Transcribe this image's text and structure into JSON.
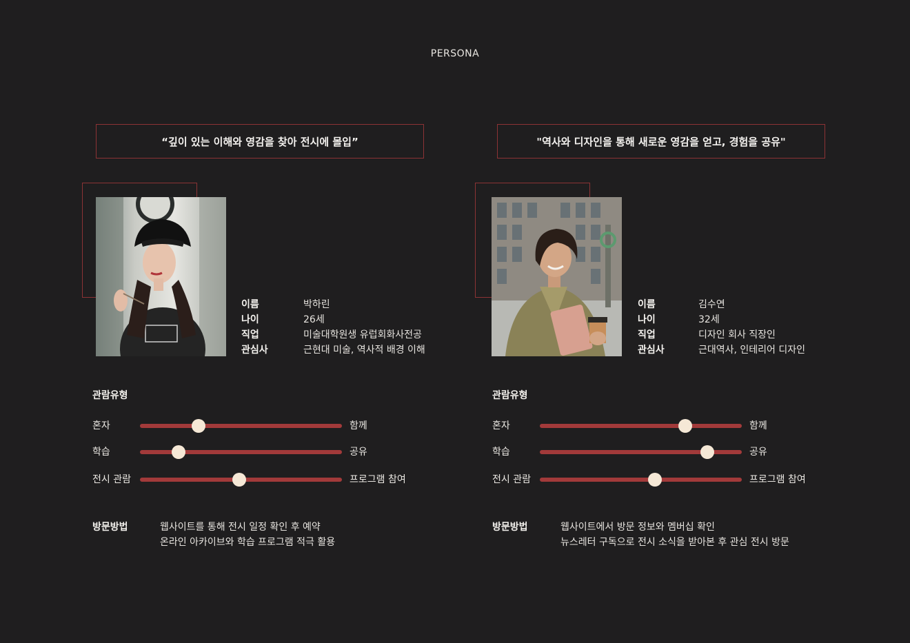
{
  "page_title": "PERSONA",
  "colors": {
    "background": "#1f1e1f",
    "accent": "#a23a3a",
    "border": "#8d3335",
    "knob": "#f5e8d6"
  },
  "personas": [
    {
      "quote": "“깊이 있는 이해와 영감을 찾아 전시에 몰입”",
      "photo_icon": "woman-bucket-hat-photo",
      "info": [
        {
          "key": "이름",
          "value": "박하린"
        },
        {
          "key": "나이",
          "value": "26세"
        },
        {
          "key": "직업",
          "value": "미술대학원생 유럽회화사전공"
        },
        {
          "key": "관심사",
          "value": "근현대 미술, 역사적 배경 이해"
        }
      ],
      "viewing_type_title": "관람유형",
      "sliders": [
        {
          "left": "혼자",
          "right": "함께",
          "value": 0.29
        },
        {
          "left": "학습",
          "right": "공유",
          "value": 0.19
        },
        {
          "left": "전시 관람",
          "right": "프로그램 참여",
          "value": 0.49
        }
      ],
      "visit_title": "방문방법",
      "visit_lines": [
        "웹사이트를 통해 전시 일정 확인 후 예약",
        "온라인 아카이브와 학습 프로그램 적극 활용"
      ]
    },
    {
      "quote": "\"역사와 디자인을 통해 새로운 영감을 얻고, 경험을 공유\"",
      "photo_icon": "woman-tablet-coffee-photo",
      "info": [
        {
          "key": "이름",
          "value": "김수연"
        },
        {
          "key": "나이",
          "value": "32세"
        },
        {
          "key": "직업",
          "value": "디자인 회사 직장인"
        },
        {
          "key": "관심사",
          "value": "근대역사, 인테리어 디자인"
        }
      ],
      "viewing_type_title": "관람유형",
      "sliders": [
        {
          "left": "혼자",
          "right": "함께",
          "value": 0.72
        },
        {
          "left": "학습",
          "right": "공유",
          "value": 0.83
        },
        {
          "left": "전시 관람",
          "right": "프로그램 참여",
          "value": 0.57
        }
      ],
      "visit_title": "방문방법",
      "visit_lines": [
        "웹사이트에서 방문 정보와 멤버십 확인",
        "뉴스레터 구독으로 전시 소식을 받아본 후 관심 전시 방문"
      ]
    }
  ]
}
